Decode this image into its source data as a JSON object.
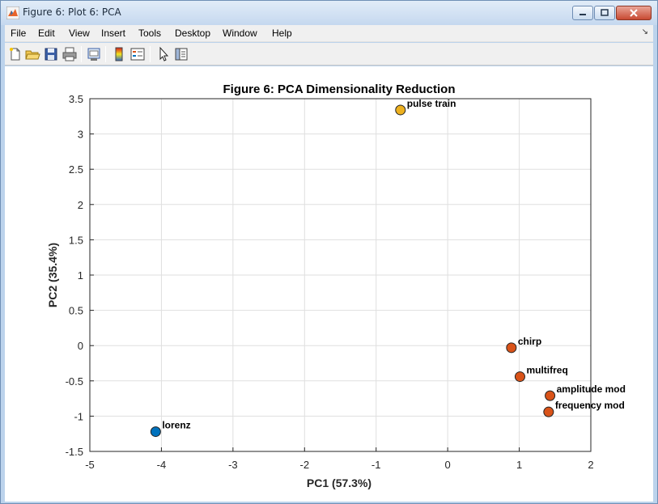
{
  "window": {
    "title": "Figure 6: Plot 6: PCA"
  },
  "menu": {
    "items": [
      "File",
      "Edit",
      "View",
      "Insert",
      "Tools",
      "Desktop",
      "Window",
      "Help"
    ]
  },
  "toolbar": {
    "icons": [
      "new-file-icon",
      "open-folder-icon",
      "save-icon",
      "print-icon",
      "link-figure-icon",
      "colorbar-icon",
      "legend-icon",
      "pointer-icon",
      "property-editor-icon"
    ]
  },
  "chart_data": {
    "type": "scatter",
    "title": "Figure 6: PCA Dimensionality Reduction",
    "xlabel": "PC1 (57.3%)",
    "ylabel": "PC2 (35.4%)",
    "xlim": [
      -5,
      2
    ],
    "ylim": [
      -1.5,
      3.5
    ],
    "xticks": [
      "-5",
      "-4",
      "-3",
      "-2",
      "-1",
      "0",
      "1",
      "2"
    ],
    "yticks": [
      "-1.5",
      "-1",
      "-0.5",
      "0",
      "0.5",
      "1",
      "1.5",
      "2",
      "2.5",
      "3",
      "3.5"
    ],
    "grid": true,
    "points": [
      {
        "label": "pulse train",
        "x": -0.66,
        "y": 3.34,
        "color": "#edb120"
      },
      {
        "label": "chirp",
        "x": 0.89,
        "y": -0.03,
        "color": "#d95319"
      },
      {
        "label": "multifreq",
        "x": 1.01,
        "y": -0.44,
        "color": "#d95319"
      },
      {
        "label": "amplitude mod",
        "x": 1.43,
        "y": -0.71,
        "color": "#d95319"
      },
      {
        "label": "frequency mod",
        "x": 1.41,
        "y": -0.94,
        "color": "#d95319"
      },
      {
        "label": "lorenz",
        "x": -4.08,
        "y": -1.22,
        "color": "#0072bd"
      }
    ]
  }
}
